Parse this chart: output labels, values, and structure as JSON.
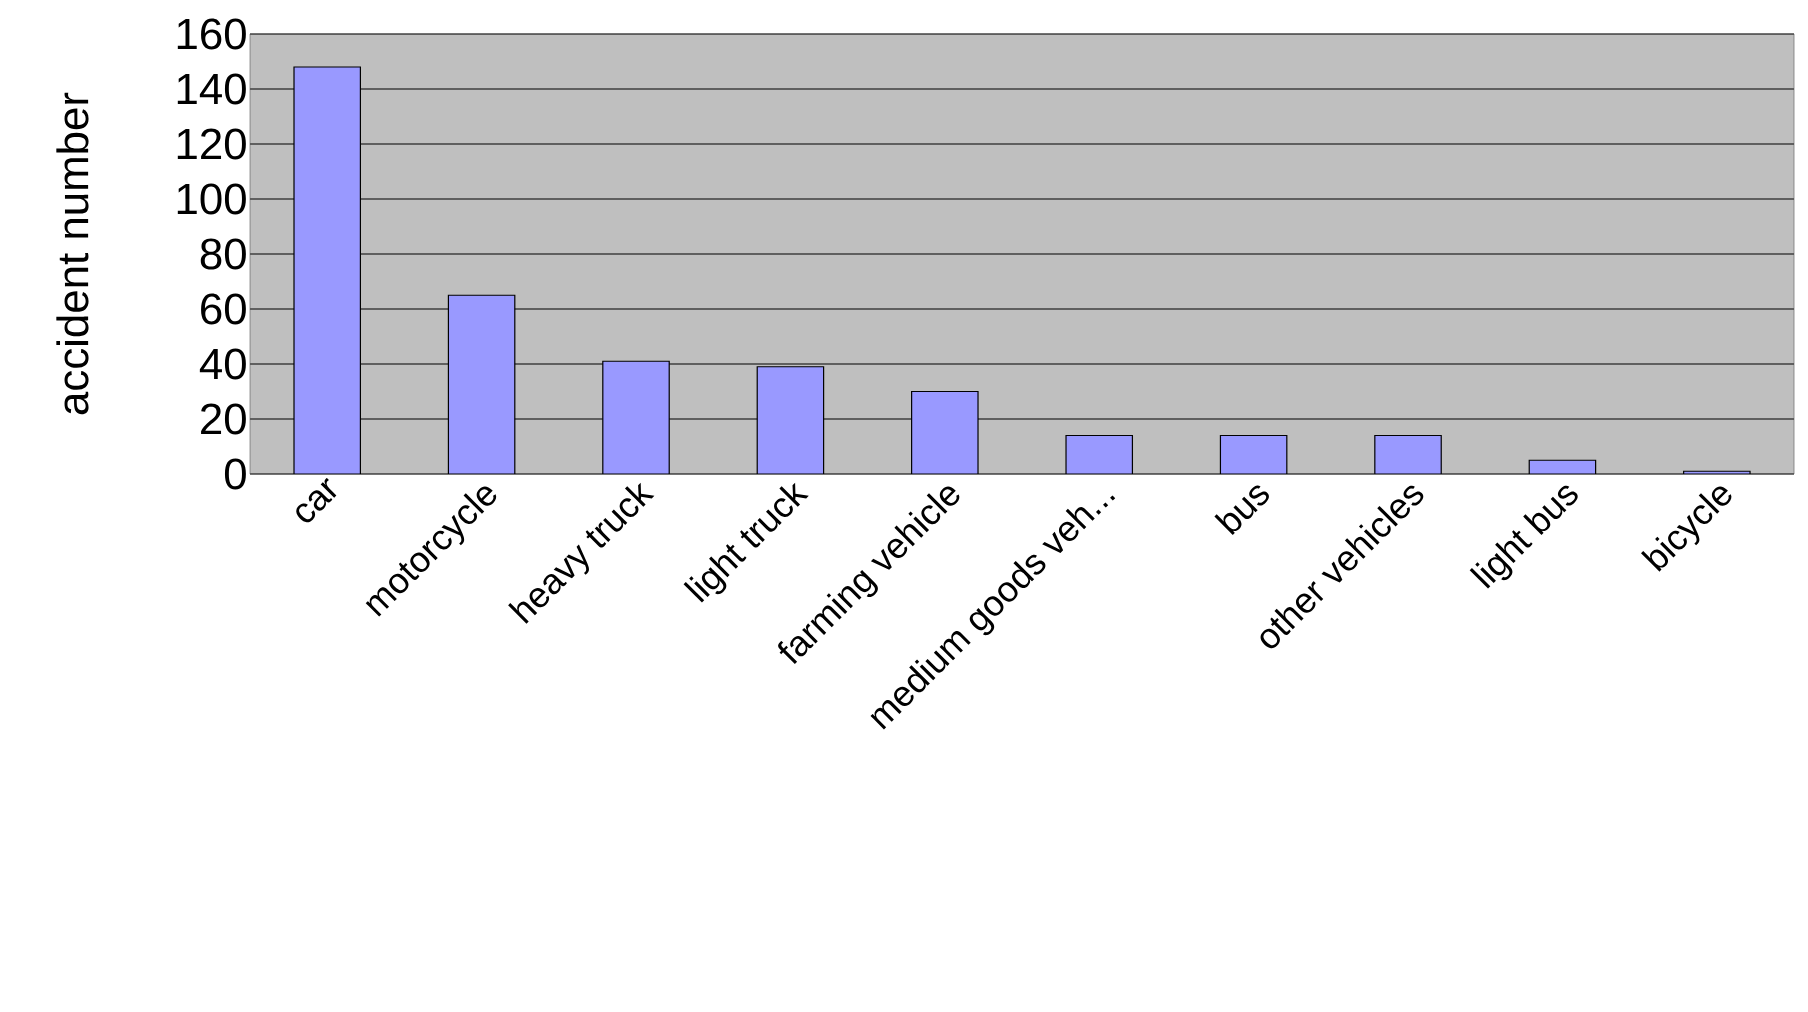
{
  "chart_data": {
    "type": "bar",
    "ylabel": "accident number",
    "categories": [
      "car",
      "motorcycle",
      "heavy truck",
      "light truck",
      "farming vehicle",
      "medium goods veh...",
      "bus",
      "other vehicles",
      "light bus",
      "bicycle"
    ],
    "values": [
      148,
      65,
      41,
      39,
      30,
      14,
      14,
      14,
      5,
      1
    ],
    "color": "#9999ff",
    "ylim": [
      0,
      160
    ],
    "yticks": [
      0,
      20,
      40,
      60,
      80,
      100,
      120,
      140,
      160
    ],
    "grid": "y"
  }
}
